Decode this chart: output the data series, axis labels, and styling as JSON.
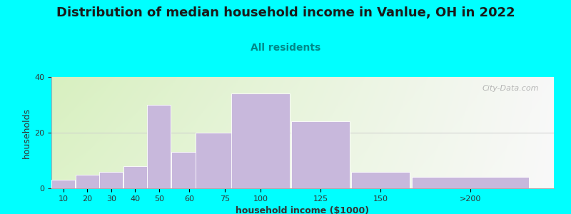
{
  "title": "Distribution of median household income in Vanlue, OH in 2022",
  "subtitle": "All residents",
  "xlabel": "household income ($1000)",
  "ylabel": "households",
  "bar_labels": [
    "10",
    "20",
    "30",
    "40",
    "50",
    "60",
    "75",
    "100",
    "125",
    "150",
    ">200"
  ],
  "bar_heights": [
    3,
    5,
    6,
    8,
    30,
    13,
    20,
    34,
    24,
    6,
    4
  ],
  "bar_widths": [
    10,
    10,
    10,
    10,
    10,
    15,
    25,
    25,
    25,
    25,
    50
  ],
  "bar_lefts": [
    0,
    10,
    20,
    30,
    40,
    50,
    60,
    75,
    100,
    125,
    150
  ],
  "bar_color": "#C8B8DC",
  "bar_edge_color": "#ffffff",
  "ylim": [
    0,
    40
  ],
  "yticks": [
    0,
    20,
    40
  ],
  "xlim_max": 210,
  "bg_color": "#00FFFF",
  "plot_bg_color_topleft": "#d8f0c0",
  "plot_bg_color_right": "#f0f8f0",
  "plot_bg_color_bottom": "#f8f8f8",
  "title_fontsize": 13,
  "title_color": "#1a1a1a",
  "subtitle_fontsize": 10,
  "subtitle_color": "#008888",
  "axis_label_fontsize": 9,
  "axis_label_color": "#333333",
  "tick_fontsize": 8,
  "tick_color": "#333333",
  "watermark_text": "City-Data.com",
  "watermark_color": "#aaaaaa",
  "gridline_color": "#cccccc",
  "spine_color": "#aaaaaa"
}
